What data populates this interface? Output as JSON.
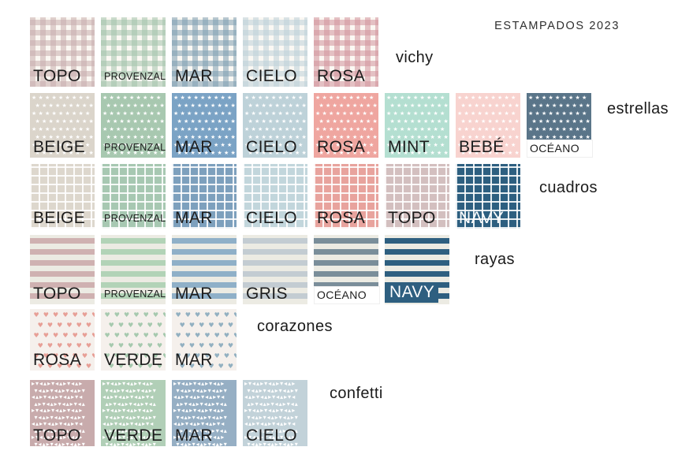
{
  "title": "ESTAMPADOS 2023",
  "groups": [
    {
      "name": "vichy",
      "pattern": "vichy",
      "swatches": [
        {
          "label": "TOPO",
          "color": "#c8adad",
          "label_style": "inside"
        },
        {
          "label": "PROVENZAL",
          "color": "#a3c3ac",
          "label_style": "inside-small"
        },
        {
          "label": "MAR",
          "color": "#7f9fb2",
          "label_style": "inside"
        },
        {
          "label": "CIELO",
          "color": "#bdd1d9",
          "label_style": "inside"
        },
        {
          "label": "ROSA",
          "color": "#d1939c",
          "label_style": "inside"
        }
      ]
    },
    {
      "name": "estrellas",
      "pattern": "stars",
      "swatches": [
        {
          "label": "BEIGE",
          "color": "#dbd5cb",
          "label_style": "inside"
        },
        {
          "label": "PROVENZAL",
          "color": "#a8c8b0",
          "label_style": "inside-small"
        },
        {
          "label": "MAR",
          "color": "#7ba3c5",
          "label_style": "inside"
        },
        {
          "label": "CIELO",
          "color": "#bed2d9",
          "label_style": "inside"
        },
        {
          "label": "ROSA",
          "color": "#efa6a0",
          "label_style": "inside"
        },
        {
          "label": "MINT",
          "color": "#b4dfd1",
          "label_style": "inside"
        },
        {
          "label": "BEBÉ",
          "color": "#f8d3cf",
          "label_style": "inside"
        },
        {
          "label": "OCÉANO",
          "color": "#5a7589",
          "label_style": "below"
        }
      ]
    },
    {
      "name": "cuadros",
      "pattern": "grid",
      "swatches": [
        {
          "label": "BEIGE",
          "color": "#ddd7cd",
          "label_style": "inside"
        },
        {
          "label": "PROVENZAL",
          "color": "#a7c8b2",
          "label_style": "inside-small"
        },
        {
          "label": "MAR",
          "color": "#7da0bd",
          "label_style": "inside"
        },
        {
          "label": "CIELO",
          "color": "#c2d6dc",
          "label_style": "inside"
        },
        {
          "label": "ROSA",
          "color": "#e8a39d",
          "label_style": "inside"
        },
        {
          "label": "TOPO",
          "color": "#d3bfbf",
          "label_style": "inside"
        },
        {
          "label": "NAVY",
          "color": "#2d5f80",
          "label_style": "inside-white"
        }
      ]
    },
    {
      "name": "rayas",
      "pattern": "stripes",
      "swatches": [
        {
          "label": "TOPO",
          "color": "#cfb1b1",
          "label_style": "inside"
        },
        {
          "label": "PROVENZAL",
          "color": "#b2d3b7",
          "label_style": "inside-small"
        },
        {
          "label": "MAR",
          "color": "#8fb0c8",
          "label_style": "inside"
        },
        {
          "label": "GRIS",
          "color": "#c3ccd2",
          "label_style": "inside"
        },
        {
          "label": "OCÉANO",
          "color": "#7a8e9a",
          "label_style": "below"
        },
        {
          "label": "NAVY",
          "color": "#2e5f80",
          "label_style": "bar-navy"
        }
      ]
    },
    {
      "name": "corazones",
      "pattern": "hearts",
      "swatches": [
        {
          "label": "ROSA",
          "color": "#e79f96",
          "label_style": "inside"
        },
        {
          "label": "VERDE",
          "color": "#a6c9ae",
          "label_style": "inside"
        },
        {
          "label": "MAR",
          "color": "#92b0c1",
          "label_style": "inside"
        }
      ]
    },
    {
      "name": "confetti",
      "pattern": "confetti",
      "swatches": [
        {
          "label": "TOPO",
          "color": "#c8abac",
          "label_style": "inside"
        },
        {
          "label": "VERDE",
          "color": "#b1cfb7",
          "label_style": "inside"
        },
        {
          "label": "MAR",
          "color": "#96afc4",
          "label_style": "inside"
        },
        {
          "label": "CIELO",
          "color": "#c2d2d9",
          "label_style": "inside"
        }
      ]
    }
  ]
}
